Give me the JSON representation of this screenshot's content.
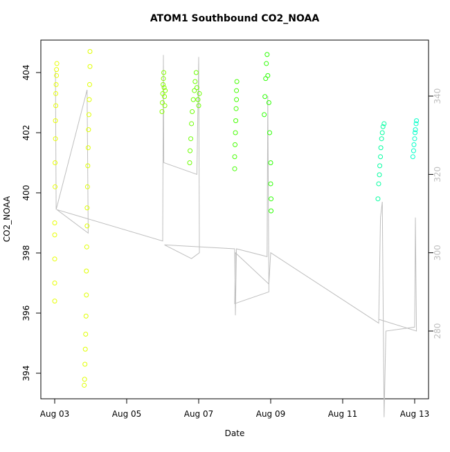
{
  "chart_data": {
    "type": "scatter",
    "title": "ATOM1 Southbound CO2_NOAA",
    "xlabel": "Date",
    "ylabel": "CO2_NOAA",
    "xlim": [
      2.615,
      13.385
    ],
    "ylim": [
      393.15,
      405.08
    ],
    "y2lim": [
      262.7,
      354.3
    ],
    "xticks": [
      {
        "value": 3,
        "label": "Aug 03"
      },
      {
        "value": 5,
        "label": "Aug 05"
      },
      {
        "value": 7,
        "label": "Aug 07"
      },
      {
        "value": 9,
        "label": "Aug 09"
      },
      {
        "value": 11,
        "label": "Aug 11"
      },
      {
        "value": 13,
        "label": "Aug 13"
      }
    ],
    "yticks": [
      394,
      396,
      398,
      400,
      402,
      404
    ],
    "y2ticks": [
      280,
      300,
      320,
      340
    ],
    "y2color": "#bebebe",
    "series": [
      {
        "color": "#e8ff00",
        "x": [
          3.0,
          3.0,
          3.0,
          3.0,
          3.0,
          3.01,
          3.01,
          3.02,
          3.02,
          3.03,
          3.03,
          3.04,
          3.05,
          3.05,
          3.06
        ],
        "values": [
          396.4,
          397.0,
          397.8,
          398.6,
          399.0,
          400.2,
          401.0,
          401.8,
          402.4,
          402.9,
          403.3,
          403.6,
          403.9,
          404.1,
          404.3
        ]
      },
      {
        "color": "#e0ff00",
        "x": [
          3.82,
          3.83,
          3.84,
          3.85,
          3.86,
          3.87,
          3.88,
          3.88,
          3.89,
          3.9,
          3.9,
          3.91,
          3.92,
          3.93,
          3.94,
          3.95,
          3.96,
          3.97,
          3.98,
          3.98
        ],
        "values": [
          393.6,
          393.8,
          394.3,
          394.8,
          395.3,
          395.9,
          396.6,
          397.4,
          398.2,
          398.9,
          399.5,
          400.2,
          400.9,
          401.5,
          402.1,
          402.6,
          403.1,
          403.6,
          404.2,
          404.7
        ]
      },
      {
        "color": "#88ff00",
        "x": [
          5.98,
          5.99,
          6.0,
          6.01,
          6.02,
          6.03,
          6.04,
          6.05,
          6.06,
          6.07
        ],
        "values": [
          402.7,
          403.0,
          403.3,
          403.6,
          403.8,
          404.0,
          403.5,
          403.2,
          402.9,
          403.4
        ]
      },
      {
        "color": "#6cff00",
        "x": [
          6.75,
          6.76,
          6.78,
          6.8,
          6.82,
          6.85,
          6.88,
          6.9,
          6.93,
          6.95,
          6.98,
          7.0,
          7.02
        ],
        "values": [
          401.0,
          401.4,
          401.8,
          402.3,
          402.7,
          403.1,
          403.4,
          403.7,
          404.0,
          403.5,
          403.1,
          402.9,
          403.3
        ]
      },
      {
        "color": "#44ff00",
        "x": [
          8.0,
          8.0,
          8.01,
          8.02,
          8.03,
          8.04,
          8.05,
          8.05,
          8.06
        ],
        "values": [
          400.8,
          401.2,
          401.6,
          402.0,
          402.4,
          402.8,
          403.1,
          403.4,
          403.7
        ]
      },
      {
        "color": "#2aff00",
        "x": [
          8.82,
          8.84,
          8.86,
          8.88,
          8.9,
          8.92,
          8.95,
          8.97,
          9.0,
          9.0,
          9.01,
          9.01
        ],
        "values": [
          402.6,
          403.2,
          403.8,
          404.3,
          404.6,
          403.9,
          403.0,
          402.0,
          401.0,
          400.3,
          399.8,
          399.4
        ]
      },
      {
        "color": "#00ffa0",
        "x": [
          11.98,
          12.0,
          12.02,
          12.03,
          12.05,
          12.06,
          12.08,
          12.1,
          12.12,
          12.15
        ],
        "values": [
          399.8,
          400.3,
          400.6,
          400.9,
          401.2,
          401.5,
          401.8,
          402.0,
          402.2,
          402.3
        ]
      },
      {
        "color": "#00ffc8",
        "x": [
          12.95,
          12.97,
          12.98,
          13.0,
          13.01,
          13.02,
          13.04,
          13.05
        ],
        "values": [
          401.2,
          401.4,
          401.6,
          401.8,
          402.0,
          402.1,
          402.3,
          402.4
        ]
      }
    ],
    "line": {
      "axis": "y2",
      "color": "#bebebe",
      "x": [
        3.02,
        3.04,
        3.9,
        3.93,
        3.06,
        6.0,
        6.02,
        6.03,
        6.95,
        7.0,
        7.02,
        6.8,
        6.05,
        8.0,
        8.02,
        8.05,
        8.9,
        8.92,
        8.95,
        8.0,
        8.02,
        8.95,
        9.0,
        12.0,
        12.05,
        12.1,
        12.15,
        12.2,
        13.0,
        13.02,
        13.05,
        12.0
      ],
      "values": [
        346.5,
        311,
        341.6,
        305,
        311,
        303,
        350.5,
        323,
        320,
        350,
        300,
        298.5,
        302,
        301,
        284,
        301,
        299,
        340,
        290,
        287,
        300,
        292,
        300,
        282,
        309,
        313,
        258,
        280,
        281,
        309,
        280,
        283
      ]
    }
  }
}
